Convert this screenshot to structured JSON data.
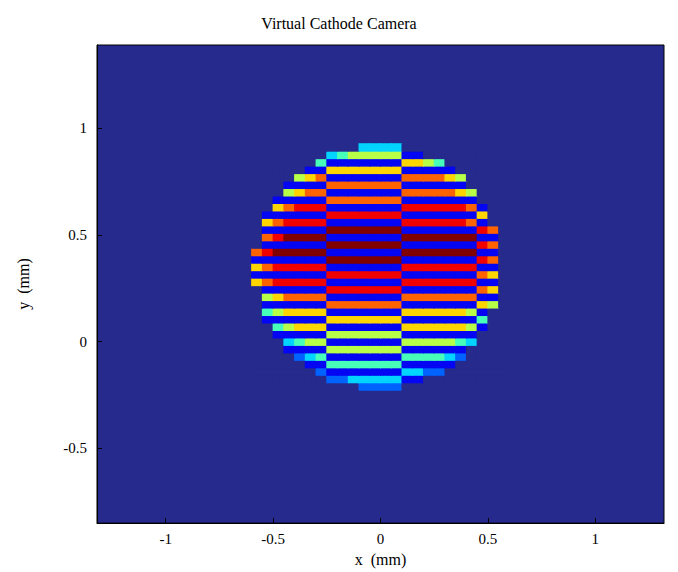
{
  "chart_data": {
    "type": "heatmap",
    "title": "Virtual Cathode Camera",
    "x_label": "x  (mm)",
    "y_label": "y  (mm)",
    "xlim": [
      -1.32,
      1.32
    ],
    "ylim": [
      -0.85,
      1.39
    ],
    "xticks": [
      -1,
      -0.5,
      0,
      0.5,
      1
    ],
    "yticks": [
      -0.5,
      0,
      0.5,
      1
    ],
    "grid": false,
    "x": [
      -0.575,
      -0.525,
      -0.475,
      -0.425,
      -0.375,
      -0.325,
      -0.275,
      -0.225,
      -0.175,
      -0.125,
      -0.075,
      -0.025,
      0.025,
      0.075,
      0.125,
      0.175,
      0.225,
      0.275,
      0.325,
      0.375,
      0.425,
      0.475,
      0.525,
      0.575
    ],
    "y": [
      -0.21,
      -0.175,
      -0.14,
      -0.105,
      -0.07,
      -0.035,
      0,
      0.035,
      0.07,
      0.105,
      0.14,
      0.175,
      0.21,
      0.245,
      0.28,
      0.315,
      0.35,
      0.385,
      0.42,
      0.455,
      0.49,
      0.525,
      0.56,
      0.595,
      0.63,
      0.665,
      0.7,
      0.735,
      0.77,
      0.805,
      0.84,
      0.875,
      0.91
    ],
    "cells": [
      [
        0,
        0,
        0,
        0,
        0,
        0,
        0,
        0,
        0,
        0,
        2,
        2,
        2,
        2,
        0,
        0,
        0,
        0,
        0,
        0,
        0,
        0,
        0,
        0
      ],
      [
        0,
        0,
        0,
        0,
        0,
        0,
        0,
        2,
        2,
        3,
        3,
        3,
        3,
        3,
        1,
        1,
        0,
        0,
        0,
        0,
        0,
        0,
        0,
        0
      ],
      [
        0,
        0,
        0,
        0,
        0,
        0,
        2,
        1,
        1,
        1,
        1,
        1,
        1,
        1,
        3,
        3,
        2,
        2,
        0,
        0,
        0,
        0,
        0,
        0
      ],
      [
        0,
        0,
        0,
        0,
        0,
        1,
        1,
        4,
        4,
        4,
        4,
        4,
        4,
        4,
        1,
        1,
        1,
        1,
        1,
        0,
        0,
        0,
        0,
        0
      ],
      [
        0,
        0,
        0,
        0,
        2,
        3,
        4,
        1,
        1,
        1,
        1,
        1,
        1,
        1,
        4,
        4,
        4,
        4,
        3,
        2,
        0,
        0,
        0,
        0
      ],
      [
        0,
        0,
        0,
        1,
        1,
        1,
        1,
        5,
        5,
        5,
        5,
        5,
        5,
        5,
        1,
        1,
        1,
        1,
        1,
        1,
        0,
        0,
        0,
        0
      ],
      [
        0,
        0,
        0,
        3,
        4,
        5,
        5,
        1,
        1,
        1,
        1,
        1,
        1,
        1,
        5,
        5,
        5,
        5,
        5,
        4,
        3,
        0,
        0,
        0
      ],
      [
        0,
        0,
        1,
        1,
        1,
        1,
        1,
        5,
        5,
        5,
        5,
        5,
        5,
        5,
        1,
        1,
        1,
        1,
        1,
        1,
        1,
        0,
        0,
        0
      ],
      [
        0,
        0,
        4,
        5,
        6,
        6,
        6,
        1,
        1,
        1,
        1,
        1,
        1,
        1,
        6,
        6,
        6,
        6,
        6,
        6,
        5,
        1,
        0,
        0
      ],
      [
        0,
        1,
        1,
        1,
        1,
        1,
        1,
        6,
        6,
        6,
        6,
        6,
        6,
        6,
        1,
        1,
        1,
        1,
        1,
        1,
        1,
        4,
        0,
        0
      ],
      [
        0,
        4,
        5,
        6,
        6,
        6,
        6,
        1,
        1,
        1,
        1,
        1,
        1,
        1,
        6,
        6,
        6,
        6,
        6,
        6,
        5,
        1,
        0,
        0
      ],
      [
        0,
        1,
        1,
        1,
        1,
        1,
        1,
        7,
        7,
        7,
        7,
        7,
        7,
        7,
        1,
        1,
        1,
        1,
        1,
        1,
        1,
        6,
        5,
        0
      ],
      [
        0,
        5,
        6,
        7,
        7,
        7,
        7,
        1,
        1,
        1,
        1,
        1,
        1,
        1,
        7,
        7,
        7,
        7,
        7,
        7,
        7,
        1,
        1,
        0
      ],
      [
        0,
        1,
        1,
        1,
        1,
        1,
        1,
        8,
        8,
        8,
        8,
        8,
        8,
        8,
        1,
        1,
        1,
        1,
        1,
        1,
        1,
        7,
        6,
        0
      ],
      [
        6,
        7,
        8,
        8,
        8,
        8,
        8,
        1,
        1,
        1,
        1,
        1,
        1,
        1,
        8,
        8,
        8,
        8,
        8,
        8,
        8,
        1,
        1,
        0
      ],
      [
        1,
        1,
        1,
        1,
        1,
        1,
        1,
        8,
        8,
        8,
        8,
        8,
        8,
        8,
        1,
        1,
        1,
        1,
        1,
        1,
        1,
        7,
        6,
        0
      ],
      [
        6,
        7,
        8,
        8,
        8,
        8,
        8,
        1,
        1,
        1,
        1,
        1,
        1,
        1,
        8,
        8,
        8,
        8,
        8,
        8,
        8,
        1,
        1,
        0
      ],
      [
        1,
        1,
        1,
        1,
        1,
        1,
        1,
        9,
        9,
        9,
        9,
        9,
        9,
        9,
        1,
        1,
        1,
        1,
        1,
        1,
        1,
        8,
        7,
        0
      ],
      [
        7,
        8,
        9,
        9,
        9,
        9,
        9,
        1,
        1,
        1,
        1,
        1,
        1,
        1,
        9,
        9,
        9,
        9,
        9,
        9,
        9,
        1,
        1,
        0
      ],
      [
        0,
        1,
        1,
        1,
        1,
        1,
        1,
        9,
        9,
        9,
        9,
        9,
        9,
        9,
        1,
        1,
        1,
        1,
        1,
        1,
        1,
        8,
        7,
        0
      ],
      [
        0,
        7,
        8,
        9,
        9,
        9,
        9,
        1,
        1,
        1,
        1,
        1,
        1,
        1,
        9,
        9,
        9,
        9,
        9,
        9,
        9,
        1,
        1,
        0
      ],
      [
        0,
        1,
        1,
        1,
        1,
        1,
        1,
        9,
        9,
        9,
        9,
        9,
        9,
        9,
        1,
        1,
        1,
        1,
        1,
        1,
        1,
        8,
        7,
        0
      ],
      [
        0,
        6,
        7,
        8,
        8,
        8,
        8,
        1,
        1,
        1,
        1,
        1,
        1,
        1,
        8,
        8,
        8,
        8,
        8,
        8,
        7,
        1,
        0,
        0
      ],
      [
        0,
        1,
        1,
        1,
        1,
        1,
        1,
        8,
        8,
        8,
        8,
        8,
        8,
        8,
        1,
        1,
        1,
        1,
        1,
        1,
        1,
        6,
        0,
        0
      ],
      [
        0,
        0,
        6,
        7,
        8,
        8,
        8,
        1,
        1,
        1,
        1,
        1,
        1,
        1,
        8,
        8,
        8,
        8,
        8,
        8,
        7,
        1,
        0,
        0
      ],
      [
        0,
        0,
        1,
        1,
        1,
        1,
        1,
        7,
        7,
        7,
        7,
        7,
        7,
        7,
        1,
        1,
        1,
        1,
        1,
        1,
        1,
        0,
        0,
        0
      ],
      [
        0,
        0,
        0,
        5,
        6,
        7,
        7,
        1,
        1,
        1,
        1,
        1,
        1,
        1,
        7,
        7,
        7,
        7,
        7,
        6,
        5,
        0,
        0,
        0
      ],
      [
        0,
        0,
        0,
        1,
        1,
        1,
        1,
        7,
        7,
        7,
        7,
        7,
        7,
        7,
        1,
        1,
        1,
        1,
        1,
        1,
        0,
        0,
        0,
        0
      ],
      [
        0,
        0,
        0,
        0,
        5,
        6,
        7,
        1,
        1,
        1,
        1,
        1,
        1,
        1,
        7,
        7,
        7,
        7,
        6,
        5,
        0,
        0,
        0,
        0
      ],
      [
        0,
        0,
        0,
        0,
        0,
        1,
        1,
        6,
        6,
        6,
        6,
        6,
        6,
        6,
        1,
        1,
        1,
        1,
        1,
        0,
        0,
        0,
        0,
        0
      ],
      [
        0,
        0,
        0,
        0,
        0,
        0,
        4,
        1,
        1,
        1,
        1,
        1,
        1,
        1,
        6,
        6,
        5,
        4,
        0,
        0,
        0,
        0,
        0,
        0
      ],
      [
        0,
        0,
        0,
        0,
        0,
        0,
        0,
        3,
        4,
        5,
        5,
        5,
        5,
        5,
        1,
        1,
        0,
        0,
        0,
        0,
        0,
        0,
        0,
        0
      ],
      [
        0,
        0,
        0,
        0,
        0,
        0,
        0,
        0,
        0,
        0,
        3,
        3,
        3,
        3,
        0,
        0,
        0,
        0,
        0,
        0,
        0,
        0,
        0,
        0
      ]
    ]
  }
}
